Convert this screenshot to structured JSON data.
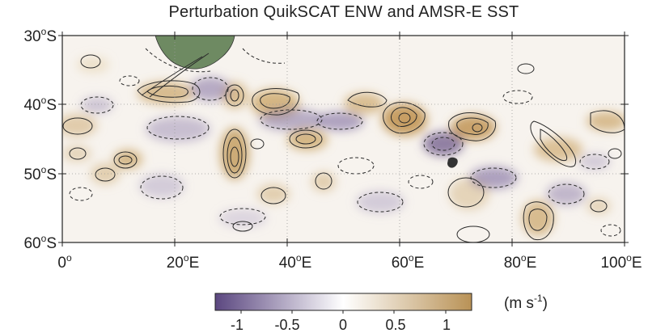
{
  "title": "Perturbation QuikSCAT ENW and AMSR-E SST",
  "map": {
    "lat_labels": [
      {
        "deg": "30",
        "sup": "o",
        "hemi": "S"
      },
      {
        "deg": "40",
        "sup": "o",
        "hemi": "S"
      },
      {
        "deg": "50",
        "sup": "o",
        "hemi": "S"
      },
      {
        "deg": "60",
        "sup": "o",
        "hemi": "S"
      }
    ],
    "lon_labels": [
      {
        "deg": "0",
        "sup": "o",
        "hemi": ""
      },
      {
        "deg": "20",
        "sup": "o",
        "hemi": "E"
      },
      {
        "deg": "40",
        "sup": "o",
        "hemi": "E"
      },
      {
        "deg": "60",
        "sup": "o",
        "hemi": "E"
      },
      {
        "deg": "80",
        "sup": "o",
        "hemi": "E"
      },
      {
        "deg": "100",
        "sup": "o",
        "hemi": "E"
      }
    ],
    "lat_range": [
      -60,
      -30
    ],
    "lon_range": [
      0,
      100
    ],
    "land_color": "#6e8a62",
    "positive_color": "#c4a36d",
    "negative_color": "#6f5a8a"
  },
  "colorbar": {
    "tick_labels": [
      "-1",
      "-0.5",
      "0",
      "0.5",
      "1"
    ],
    "range": [
      -1.25,
      1.25
    ],
    "unit_base": "(m s",
    "unit_sup": "-1",
    "unit_end": ")",
    "colors": {
      "low": "#5b4780",
      "mid": "#ffffff",
      "high": "#b99256"
    }
  }
}
